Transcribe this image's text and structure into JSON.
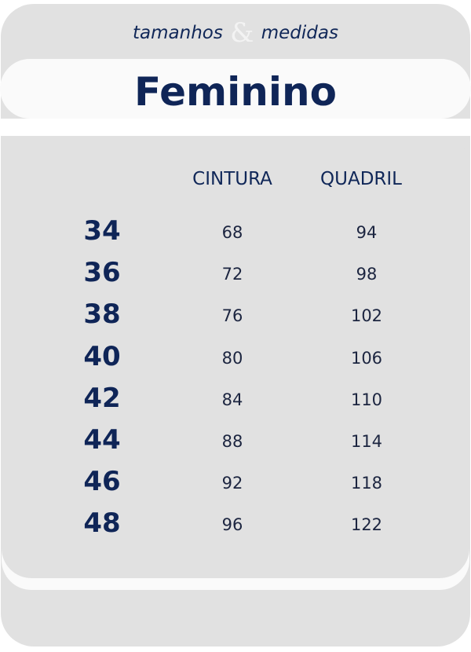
{
  "header": {
    "subtitle_left": "tamanhos",
    "ampersand": "&",
    "subtitle_right": "medidas",
    "title": "Feminino"
  },
  "table": {
    "columns": [
      "CINTURA",
      "QUADRIL"
    ],
    "rows": [
      {
        "size": "34",
        "cintura": "68",
        "quadril": "94"
      },
      {
        "size": "36",
        "cintura": "72",
        "quadril": "98"
      },
      {
        "size": "38",
        "cintura": "76",
        "quadril": "102"
      },
      {
        "size": "40",
        "cintura": "80",
        "quadril": "106"
      },
      {
        "size": "42",
        "cintura": "84",
        "quadril": "110"
      },
      {
        "size": "44",
        "cintura": "88",
        "quadril": "114"
      },
      {
        "size": "46",
        "cintura": "92",
        "quadril": "118"
      },
      {
        "size": "48",
        "cintura": "96",
        "quadril": "122"
      }
    ]
  },
  "colors": {
    "navy": "#0f2557",
    "panel": "#e1e1e1",
    "band": "#fafafa"
  }
}
